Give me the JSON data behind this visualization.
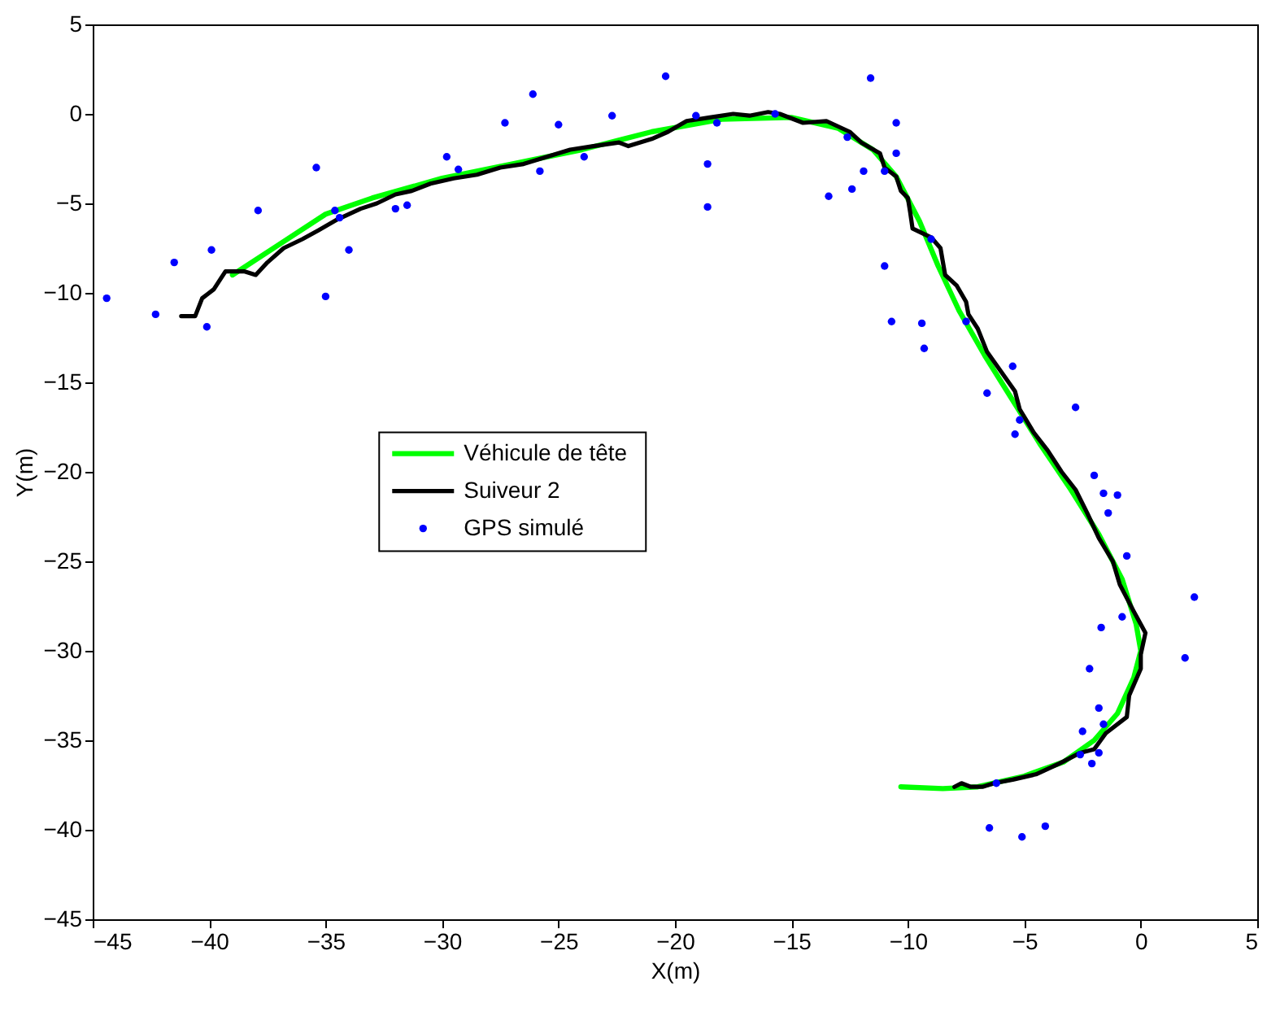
{
  "chart_data": {
    "type": "line",
    "xlabel": "X(m)",
    "ylabel": "Y(m)",
    "xlim": [
      -45,
      5
    ],
    "ylim": [
      -45,
      5
    ],
    "xticks": [
      -45,
      -40,
      -35,
      -30,
      -25,
      -20,
      -15,
      -10,
      -5,
      0,
      5
    ],
    "yticks": [
      -45,
      -40,
      -35,
      -30,
      -25,
      -20,
      -15,
      -10,
      -5,
      0,
      5
    ],
    "grid": false,
    "legend": "center",
    "series": [
      {
        "name": "Véhicule de tête",
        "color": "#00ff00",
        "x": [
          -39,
          -37,
          -35,
          -33,
          -30,
          -27,
          -24,
          -21,
          -18,
          -15,
          -13,
          -11.5,
          -10.5,
          -9.5,
          -8.7,
          -7.8,
          -6.7,
          -5.5,
          -4.3,
          -3.0,
          -1.8,
          -0.8,
          -0.2,
          0,
          -0.3,
          -1,
          -2,
          -3.3,
          -5,
          -7,
          -8.5,
          -10.3
        ],
        "values": [
          -9.0,
          -7.3,
          -5.6,
          -4.7,
          -3.6,
          -2.8,
          -2.0,
          -1.0,
          -0.3,
          -0.2,
          -0.8,
          -2.0,
          -3.5,
          -6,
          -8.5,
          -11,
          -13.5,
          -16,
          -18.5,
          -21,
          -23.5,
          -26,
          -28.5,
          -30,
          -31.5,
          -33.5,
          -35,
          -36.2,
          -37,
          -37.6,
          -37.7,
          -37.6
        ]
      },
      {
        "name": "Suiveur 2",
        "color": "#000000",
        "x": [
          -41.2,
          -40.6,
          -40.3,
          -39.8,
          -39.5,
          -39.3,
          -38.5,
          -38.0,
          -37.5,
          -36.8,
          -36,
          -35.3,
          -34.5,
          -33.5,
          -32.8,
          -32,
          -31.3,
          -30.5,
          -29.5,
          -28.5,
          -27.5,
          -26.5,
          -25.5,
          -24.5,
          -23.5,
          -22.4,
          -22.0,
          -21,
          -20.3,
          -19.5,
          -18.5,
          -17.5,
          -16.8,
          -16.0,
          -15.5,
          -14.5,
          -13.5,
          -12.5,
          -12,
          -11.2,
          -11,
          -10.5,
          -10.3,
          -10,
          -9.9,
          -9.8,
          -9.0,
          -8.6,
          -8.4,
          -7.9,
          -7.5,
          -7.4,
          -7.0,
          -6.6,
          -6.0,
          -5.4,
          -5.2,
          -4.6,
          -4.0,
          -3.4,
          -2.8,
          -2.3,
          -1.8,
          -1.2,
          -0.9,
          -0.3,
          0.2,
          0.0,
          0.0,
          -0.5,
          -0.6,
          -1.5,
          -2.0,
          -2.6,
          -3.5,
          -4.5,
          -5.5,
          -6.3,
          -6.8,
          -7.3,
          -7.7,
          -8.0
        ],
        "values": [
          -11.3,
          -11.3,
          -10.3,
          -9.8,
          -9.2,
          -8.8,
          -8.8,
          -9.0,
          -8.3,
          -7.5,
          -7.0,
          -6.5,
          -5.9,
          -5.3,
          -5.0,
          -4.5,
          -4.3,
          -3.9,
          -3.6,
          -3.4,
          -3.0,
          -2.8,
          -2.4,
          -2.0,
          -1.8,
          -1.6,
          -1.8,
          -1.4,
          -1.0,
          -0.4,
          -0.2,
          0.0,
          -0.1,
          0.1,
          0.0,
          -0.5,
          -0.4,
          -1.0,
          -1.6,
          -2.2,
          -3,
          -3.5,
          -4.3,
          -4.7,
          -5.5,
          -6.4,
          -6.9,
          -7.5,
          -9.0,
          -9.6,
          -10.5,
          -11.2,
          -12.0,
          -13.3,
          -14.4,
          -15.5,
          -16.5,
          -17.8,
          -18.8,
          -20.0,
          -21.0,
          -22.3,
          -23.7,
          -25,
          -26.3,
          -27.8,
          -29.0,
          -30.2,
          -31.0,
          -32.5,
          -33.7,
          -34.6,
          -35.5,
          -35.7,
          -36.3,
          -36.9,
          -37.2,
          -37.4,
          -37.6,
          -37.6,
          -37.4,
          -37.6
        ]
      },
      {
        "name": "GPS simulé",
        "color": "#0000ff",
        "type": "scatter",
        "marker": "circle",
        "x": [
          -44.4,
          -42.3,
          -41.5,
          -40.1,
          -39.9,
          -37.9,
          -35.4,
          -35.0,
          -34.6,
          -34.4,
          -34.0,
          -32.0,
          -31.5,
          -29.8,
          -29.3,
          -27.3,
          -26.1,
          -25.8,
          -25.0,
          -23.9,
          -22.7,
          -20.4,
          -19.1,
          -18.2,
          -18.6,
          -18.6,
          -15.7,
          -11.6,
          -10.5,
          -10.5,
          -12.6,
          -11.9,
          -11.0,
          -13.4,
          -12.4,
          -9.0,
          -11.0,
          -10.7,
          -9.4,
          -9.3,
          -7.5,
          -5.5,
          -6.6,
          -2.8,
          -5.2,
          -5.4,
          -2.0,
          -1.6,
          -1.0,
          -1.4,
          -0.6,
          2.3,
          -0.8,
          -1.7,
          1.9,
          -2.2,
          -1.8,
          -1.6,
          -2.5,
          -2.6,
          -1.8,
          -2.1,
          -6.2,
          -6.5,
          -5.1,
          -4.1
        ],
        "values": [
          -10.3,
          -11.2,
          -8.3,
          -11.9,
          -7.6,
          -5.4,
          -3.0,
          -10.2,
          -5.4,
          -5.8,
          -7.6,
          -5.3,
          -5.1,
          -2.4,
          -3.1,
          -0.5,
          1.1,
          -3.2,
          -0.6,
          -2.4,
          -0.1,
          2.1,
          -0.1,
          -0.5,
          -2.8,
          -5.2,
          0.0,
          2.0,
          -0.5,
          -2.2,
          -1.3,
          -3.2,
          -3.2,
          -4.6,
          -4.2,
          -7.0,
          -8.5,
          -11.6,
          -11.7,
          -13.1,
          -11.6,
          -14.1,
          -15.6,
          -16.4,
          -17.1,
          -17.9,
          -20.2,
          -21.2,
          -21.3,
          -22.3,
          -24.7,
          -27.0,
          -28.1,
          -28.7,
          -30.4,
          -31.0,
          -33.2,
          -34.1,
          -34.5,
          -35.8,
          -35.7,
          -36.3,
          -37.4,
          -39.9,
          -40.4,
          -39.8
        ]
      }
    ]
  }
}
